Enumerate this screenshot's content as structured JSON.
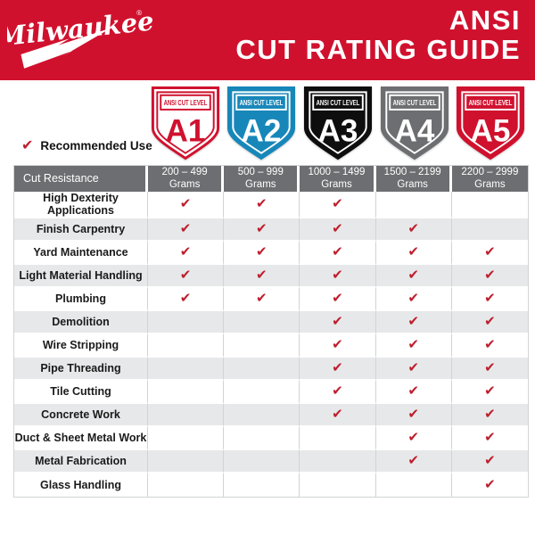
{
  "banner": {
    "logo": "Milwaukee",
    "registered_mark": "®",
    "title_line1": "ANSI",
    "title_line2": "CUT RATING GUIDE"
  },
  "legend": {
    "check_glyph": "✔",
    "label": "Recommended Use"
  },
  "badges": [
    {
      "tag": "ANSI CUT LEVEL",
      "level": "A1",
      "bg": "#ffffff",
      "fg": "#d0112e",
      "edge": "#d0112e"
    },
    {
      "tag": "ANSI CUT LEVEL",
      "level": "A2",
      "bg": "#1787b9",
      "fg": "#ffffff",
      "edge": "#1787b9"
    },
    {
      "tag": "ANSI CUT LEVEL",
      "level": "A3",
      "bg": "#0e0e0e",
      "fg": "#ffffff",
      "edge": "#0e0e0e"
    },
    {
      "tag": "ANSI CUT LEVEL",
      "level": "A4",
      "bg": "#6d6e71",
      "fg": "#ffffff",
      "edge": "#6d6e71"
    },
    {
      "tag": "ANSI CUT LEVEL",
      "level": "A5",
      "bg": "#d0112e",
      "fg": "#ffffff",
      "edge": "#d0112e"
    }
  ],
  "chart_data": {
    "type": "table",
    "title": "ANSI CUT RATING GUIDE",
    "corner_header": "Cut Resistance",
    "columns": [
      {
        "level": "A1",
        "range": "200 – 499",
        "unit": "Grams"
      },
      {
        "level": "A2",
        "range": "500 – 999",
        "unit": "Grams"
      },
      {
        "level": "A3",
        "range": "1000 – 1499",
        "unit": "Grams"
      },
      {
        "level": "A4",
        "range": "1500 – 2199",
        "unit": "Grams"
      },
      {
        "level": "A5",
        "range": "2200 – 2999",
        "unit": "Grams"
      }
    ],
    "rows": [
      {
        "label": "High Dexterity Applications",
        "checks": [
          true,
          true,
          true,
          false,
          false
        ]
      },
      {
        "label": "Finish Carpentry",
        "checks": [
          true,
          true,
          true,
          true,
          false
        ]
      },
      {
        "label": "Yard Maintenance",
        "checks": [
          true,
          true,
          true,
          true,
          true
        ]
      },
      {
        "label": "Light Material Handling",
        "checks": [
          true,
          true,
          true,
          true,
          true
        ]
      },
      {
        "label": "Plumbing",
        "checks": [
          true,
          true,
          true,
          true,
          true
        ]
      },
      {
        "label": "Demolition",
        "checks": [
          false,
          false,
          true,
          true,
          true
        ]
      },
      {
        "label": "Wire Stripping",
        "checks": [
          false,
          false,
          true,
          true,
          true
        ]
      },
      {
        "label": "Pipe Threading",
        "checks": [
          false,
          false,
          true,
          true,
          true
        ]
      },
      {
        "label": "Tile Cutting",
        "checks": [
          false,
          false,
          true,
          true,
          true
        ]
      },
      {
        "label": "Concrete Work",
        "checks": [
          false,
          false,
          true,
          true,
          true
        ]
      },
      {
        "label": "Duct & Sheet Metal Work",
        "checks": [
          false,
          false,
          false,
          true,
          true
        ]
      },
      {
        "label": "Metal Fabrication",
        "checks": [
          false,
          false,
          false,
          true,
          true
        ]
      },
      {
        "label": "Glass Handling",
        "checks": [
          false,
          false,
          false,
          false,
          true
        ]
      }
    ]
  },
  "colors": {
    "brand_red": "#d0112e",
    "check_red": "#be1e2d",
    "badge_blue": "#1787b9",
    "badge_black": "#0e0e0e",
    "badge_gray": "#6d6e71",
    "header_gray": "#6d6e71",
    "row_alt_gray": "#e7e8e9",
    "grid_line": "#d1d3d4"
  }
}
